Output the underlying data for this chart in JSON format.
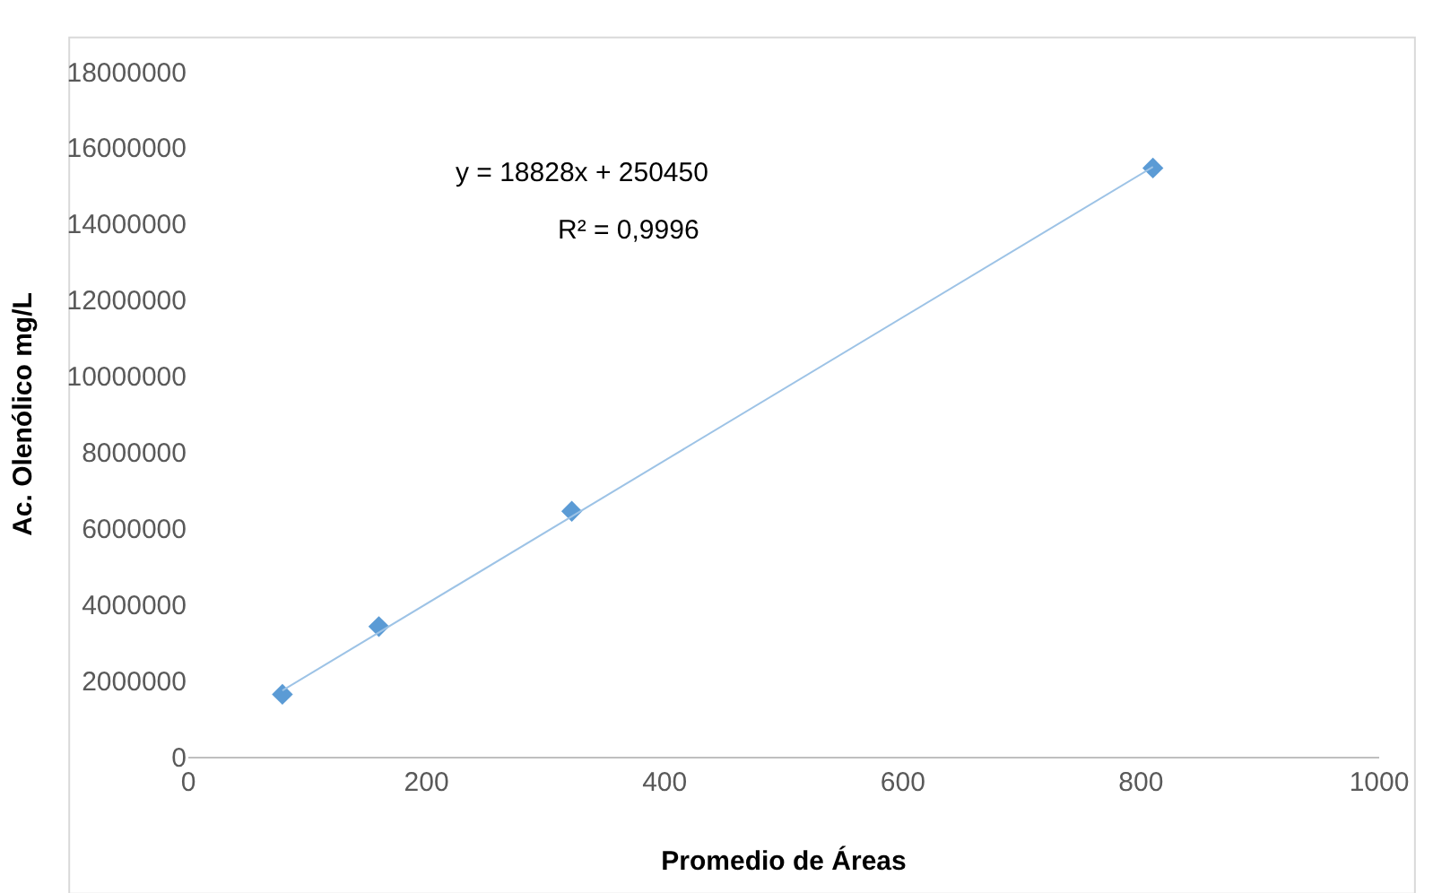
{
  "chart_data": {
    "type": "scatter",
    "xlabel": "Promedio de Áreas",
    "ylabel": "Ac. Olenólico mg/L",
    "series": [
      {
        "color": "#5b9bd5",
        "marker": "diamond",
        "x": [
          79,
          160,
          322,
          810
        ],
        "values": [
          1640000,
          3420000,
          6450000,
          15470000
        ]
      },
      {
        "type": "line",
        "color": "#9dc3e6",
        "marker": "none",
        "x": [
          79,
          810
        ],
        "values": [
          1740000,
          15500000
        ]
      }
    ],
    "annotations": [
      "y = 18828x + 250450",
      "R² = 0,9996"
    ],
    "xlim": [
      0,
      1000
    ],
    "xticks": [
      0,
      200,
      400,
      600,
      800,
      1000
    ],
    "ylim": [
      0,
      18000000
    ],
    "yticks": [
      0,
      2000000,
      4000000,
      6000000,
      8000000,
      10000000,
      12000000,
      14000000,
      16000000,
      18000000
    ],
    "grid": false,
    "legend": false
  }
}
